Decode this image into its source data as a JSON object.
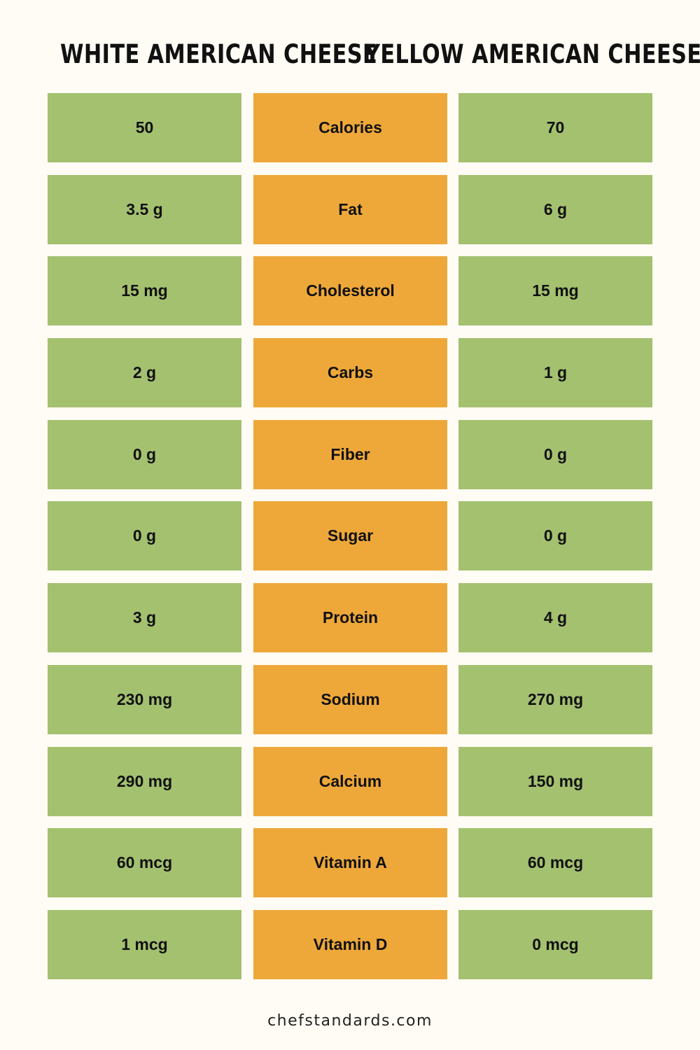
{
  "header": {
    "left_title": "WHITE AMERICAN CHEESE",
    "right_title": "YELLOW AMERICAN CHEESE"
  },
  "colors": {
    "background": "#fefcf4",
    "value_cell": "#a4c170",
    "nutrient_cell": "#eea83a",
    "text": "#111111"
  },
  "rows": [
    {
      "white": "50",
      "nutrient": "Calories",
      "yellow": "70"
    },
    {
      "white": "3.5 g",
      "nutrient": "Fat",
      "yellow": "6 g"
    },
    {
      "white": "15 mg",
      "nutrient": "Cholesterol",
      "yellow": "15 mg"
    },
    {
      "white": "2 g",
      "nutrient": "Carbs",
      "yellow": "1 g"
    },
    {
      "white": "0 g",
      "nutrient": "Fiber",
      "yellow": "0 g"
    },
    {
      "white": "0 g",
      "nutrient": "Sugar",
      "yellow": "0 g"
    },
    {
      "white": "3 g",
      "nutrient": "Protein",
      "yellow": "4 g"
    },
    {
      "white": "230 mg",
      "nutrient": "Sodium",
      "yellow": "270 mg"
    },
    {
      "white": "290 mg",
      "nutrient": "Calcium",
      "yellow": "150 mg"
    },
    {
      "white": "60 mcg",
      "nutrient": "Vitamin A",
      "yellow": "60 mcg"
    },
    {
      "white": "1 mcg",
      "nutrient": "Vitamin D",
      "yellow": "0 mcg"
    }
  ],
  "footer": {
    "source": "chefstandards.com"
  }
}
